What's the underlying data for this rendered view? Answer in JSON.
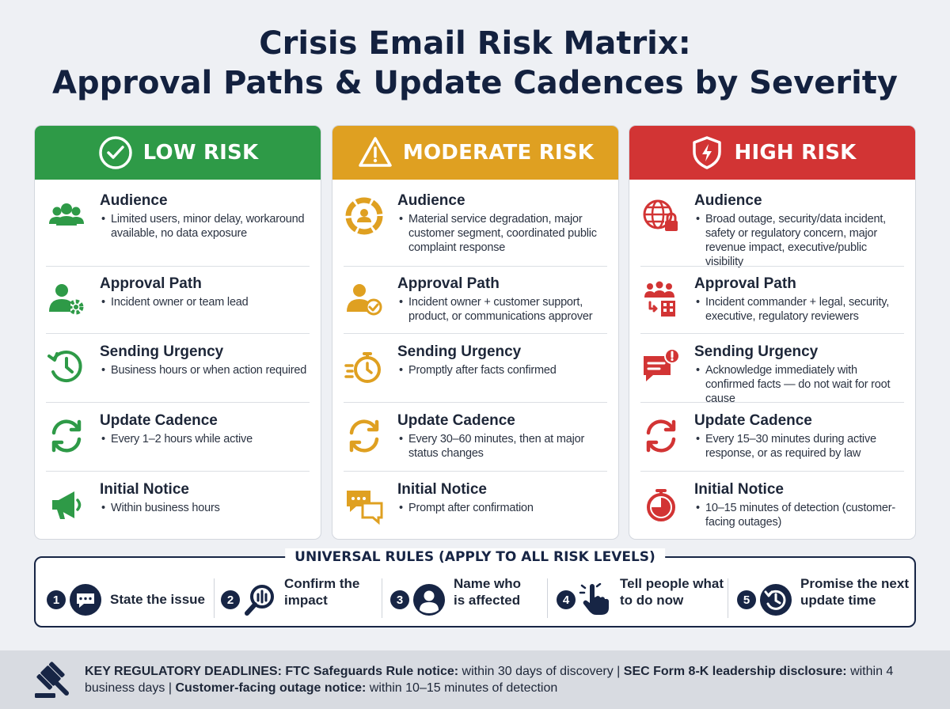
{
  "title_line1": "Crisis Email Risk Matrix:",
  "title_line2": "Approval Paths & Update Cadences by Severity",
  "colors": {
    "low": "#2e9a47",
    "moderate": "#dfa021",
    "high": "#d23434",
    "navy": "#172545"
  },
  "low": {
    "label": "LOW RISK",
    "audience": {
      "title": "Audience",
      "body": "Limited users, minor delay, workaround available, no data exposure"
    },
    "approval": {
      "title": "Approval Path",
      "body": "Incident owner or team lead"
    },
    "urgency": {
      "title": "Sending Urgency",
      "body": "Business hours or when action required"
    },
    "cadence": {
      "title": "Update Cadence",
      "body": "Every 1–2 hours while active"
    },
    "notice": {
      "title": "Initial Notice",
      "body": "Within business hours"
    }
  },
  "moderate": {
    "label": "MODERATE RISK",
    "audience": {
      "title": "Audience",
      "body": "Material service degradation, major customer segment, coordinated public complaint response"
    },
    "approval": {
      "title": "Approval Path",
      "body": "Incident owner + customer support, product, or communications approver"
    },
    "urgency": {
      "title": "Sending Urgency",
      "body": "Promptly after facts confirmed"
    },
    "cadence": {
      "title": "Update Cadence",
      "body": "Every 30–60 minutes, then at major status changes"
    },
    "notice": {
      "title": "Initial Notice",
      "body": "Prompt after confirmation"
    }
  },
  "high": {
    "label": "HIGH RISK",
    "audience": {
      "title": "Audience",
      "body": "Broad outage, security/data incident, safety or regulatory concern, major revenue impact, executive/public visibility"
    },
    "approval": {
      "title": "Approval Path",
      "body": "Incident commander + legal, security, executive, regulatory reviewers"
    },
    "urgency": {
      "title": "Sending Urgency",
      "body": "Acknowledge immediately with confirmed facts — do not wait for root cause"
    },
    "cadence": {
      "title": "Update Cadence",
      "body": "Every 15–30 minutes during active response, or as required by law"
    },
    "notice": {
      "title": "Initial Notice",
      "body": "10–15 minutes of detection (customer-facing outages)"
    }
  },
  "rules": {
    "title": "UNIVERSAL RULES (APPLY TO ALL RISK LEVELS)",
    "items": [
      {
        "num": "1",
        "line1": "State the issue",
        "line2": ""
      },
      {
        "num": "2",
        "line1": "Confirm the",
        "line2": "impact"
      },
      {
        "num": "3",
        "line1": "Name who",
        "line2": "is affected"
      },
      {
        "num": "4",
        "line1": "Tell people what",
        "line2": "to do now"
      },
      {
        "num": "5",
        "line1": "Promise the next",
        "line2": "update time"
      }
    ]
  },
  "footer": {
    "label1": "KEY REGULATORY DEADLINES: FTC Safeguards Rule notice:",
    "value1": " within 30 days of discovery | ",
    "label2": "SEC Form 8-K leadership disclosure:",
    "value2": " within 4 business days | ",
    "label3": "Customer-facing outage notice:",
    "value3": " within 10–15 minutes of detection"
  }
}
